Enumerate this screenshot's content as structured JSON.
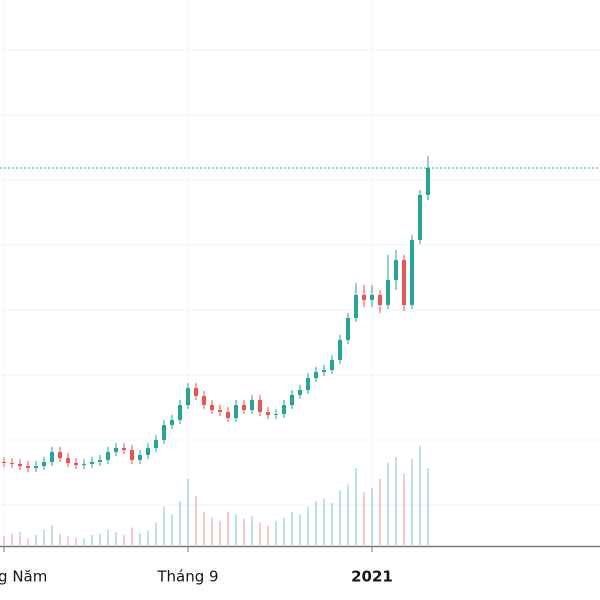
{
  "chart_data": {
    "type": "candlestick",
    "xticks": [
      {
        "value": 0,
        "label": "Tháng Năm"
      },
      {
        "value": 23,
        "label": "Tháng 9"
      },
      {
        "value": 46,
        "label": "2021"
      }
    ],
    "ylim": [
      0,
      54500
    ],
    "volume_lim": [
      0,
      100
    ],
    "up_color": "#26a69a",
    "down_color": "#ef5350",
    "open": [
      8300,
      8200,
      8100,
      7900,
      7700,
      7900,
      8300,
      9300,
      8700,
      8200,
      8000,
      8100,
      8300,
      8500,
      9300,
      9700,
      9500,
      8500,
      9000,
      9700,
      10500,
      12000,
      12500,
      14000,
      15700,
      14900,
      14000,
      13500,
      13300,
      12700,
      14000,
      13500,
      14500,
      13300,
      13000,
      13100,
      14000,
      15000,
      15500,
      16700,
      17300,
      17500,
      18500,
      20500,
      22700,
      25000,
      24500,
      25000,
      24000,
      26500,
      28500,
      24000,
      30500,
      35000
    ],
    "high": [
      8800,
      8700,
      8600,
      8400,
      8400,
      8800,
      9800,
      9800,
      9200,
      8700,
      8600,
      8800,
      9000,
      9800,
      10200,
      10200,
      10000,
      9500,
      10200,
      11000,
      12500,
      13000,
      14500,
      16200,
      16200,
      15400,
      14500,
      14000,
      13800,
      14500,
      14500,
      15000,
      15000,
      13800,
      13600,
      14500,
      15500,
      16000,
      17200,
      17800,
      18000,
      19000,
      21000,
      23200,
      26200,
      26000,
      26000,
      25500,
      29000,
      29500,
      29000,
      31000,
      35500,
      38900
    ],
    "low": [
      7800,
      7700,
      7500,
      7300,
      7300,
      7500,
      7900,
      8300,
      7800,
      7600,
      7600,
      7700,
      7900,
      8100,
      8900,
      9100,
      8100,
      8100,
      8600,
      9300,
      10100,
      11600,
      12100,
      13600,
      14500,
      13600,
      13100,
      12900,
      12300,
      12300,
      13100,
      13100,
      12900,
      12600,
      12600,
      12700,
      13600,
      14600,
      15100,
      16300,
      16900,
      17100,
      18100,
      20100,
      22300,
      23800,
      23800,
      23200,
      23600,
      25500,
      23400,
      23600,
      30100,
      34500
    ],
    "close": [
      8200,
      8100,
      7900,
      7700,
      7900,
      8300,
      9300,
      8700,
      8200,
      8000,
      8100,
      8300,
      8500,
      9300,
      9700,
      9500,
      8500,
      9000,
      9700,
      10500,
      12000,
      12500,
      14000,
      15700,
      14900,
      14000,
      13500,
      13300,
      12700,
      14000,
      13500,
      14500,
      13300,
      13000,
      13100,
      14000,
      15000,
      15500,
      16700,
      17300,
      17500,
      18500,
      20500,
      22700,
      25000,
      24500,
      25000,
      24000,
      26500,
      28500,
      24000,
      30500,
      35000,
      37700
    ],
    "volume": [
      8,
      10,
      12,
      6,
      9,
      14,
      18,
      10,
      8,
      7,
      6,
      9,
      10,
      14,
      12,
      9,
      16,
      11,
      13,
      20,
      35,
      28,
      40,
      60,
      45,
      30,
      25,
      22,
      30,
      28,
      24,
      26,
      20,
      18,
      22,
      25,
      30,
      28,
      35,
      40,
      42,
      38,
      50,
      55,
      70,
      48,
      52,
      60,
      75,
      80,
      65,
      78,
      90,
      70
    ]
  }
}
